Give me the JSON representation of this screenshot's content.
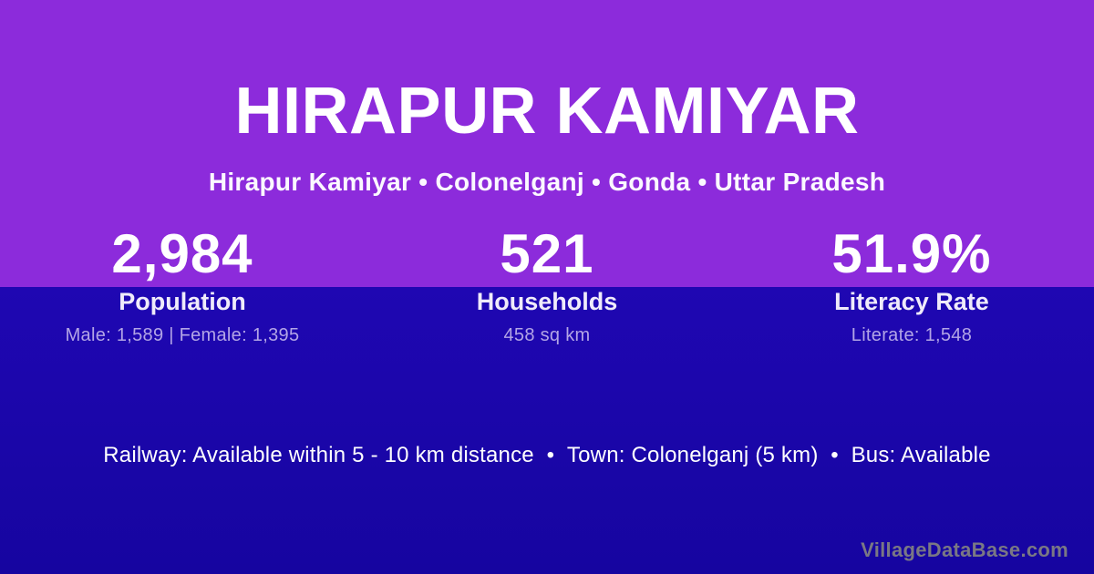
{
  "theme": {
    "background_purple": "#8C2BDB",
    "band_blue_top": "#1F07B2",
    "band_blue_bottom": "#1605A0",
    "text_white": "#FFFFFF",
    "label_color": "#EFEBFA",
    "detail_color": "#B3A5E6",
    "watermark_color": "#7A7884"
  },
  "header": {
    "title": "HIRAPUR KAMIYAR",
    "subtitle": "Hirapur Kamiyar • Colonelganj • Gonda • Uttar Pradesh"
  },
  "stats": [
    {
      "value": "2,984",
      "label": "Population",
      "detail": "Male: 1,589 | Female: 1,395"
    },
    {
      "value": "521",
      "label": "Households",
      "detail": "458 sq km"
    },
    {
      "value": "51.9%",
      "label": "Literacy Rate",
      "detail": "Literate: 1,548"
    }
  ],
  "info_line": "Railway: Available within 5 - 10 km distance  •  Town: Colonelganj (5 km)  •  Bus: Available",
  "footer": {
    "watermark": "VillageDataBase.com"
  }
}
